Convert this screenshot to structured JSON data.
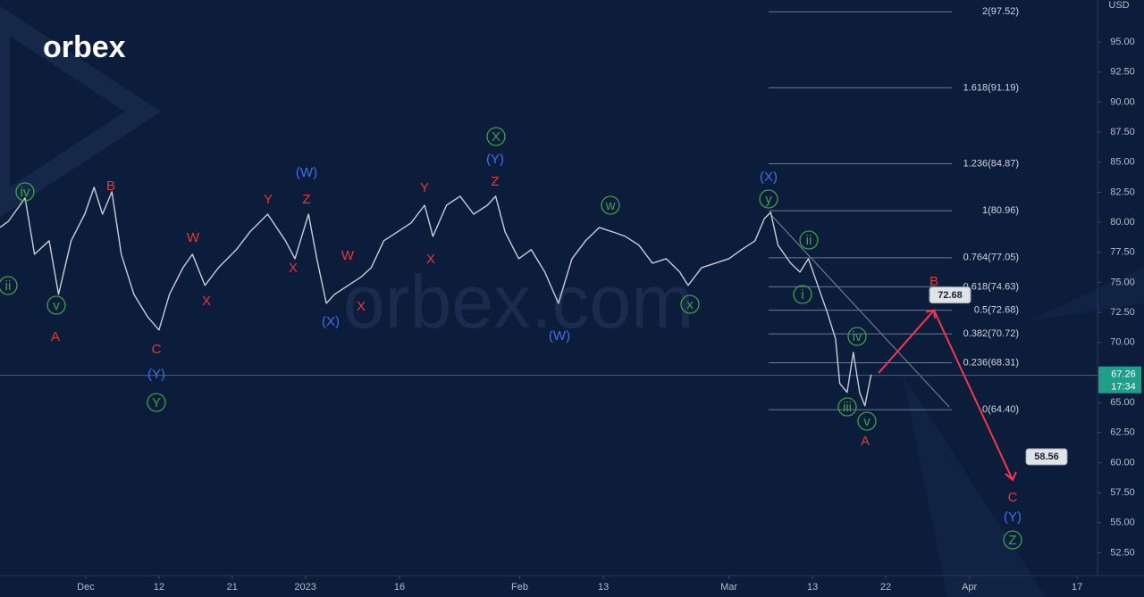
{
  "logo": "orbex",
  "watermark": "orbex.com",
  "chart_data": {
    "type": "line",
    "currency": "USD",
    "color": "#c9cdd6",
    "x": [
      -8.2,
      -7.4,
      -5.8,
      -4.9,
      -3.5,
      -2.6,
      -1.4,
      -0.1,
      0.8,
      1.6,
      2.5,
      3.4,
      4.6,
      5.9,
      7.0,
      8.0,
      9.3,
      10.2,
      11.4,
      12.7,
      14.4,
      15.7,
      17.4,
      19.1,
      20.0,
      21.3,
      22.1,
      23.0,
      23.8,
      25.1,
      26.4,
      27.3,
      28.5,
      29.8,
      31.1,
      32.4,
      33.2,
      34.5,
      35.8,
      37.1,
      38.4,
      39.2,
      40.1,
      41.4,
      42.6,
      43.9,
      45.2,
      46.5,
      47.8,
      49.1,
      50.4,
      51.6,
      52.9,
      54.2,
      55.5,
      56.8,
      57.6,
      58.9,
      60.2,
      61.5,
      62.7,
      64.0,
      64.9,
      65.5,
      66.2,
      67.4,
      68.3,
      69.1,
      70.0,
      70.9,
      71.7,
      72.1,
      72.8,
      73.4,
      74.0,
      74.5,
      75.1
    ],
    "values": [
      79.57,
      80.09,
      82.02,
      77.34,
      78.46,
      74.01,
      78.46,
      80.68,
      82.91,
      80.68,
      82.54,
      77.34,
      74.01,
      72.15,
      71.04,
      74.01,
      76.23,
      77.34,
      74.75,
      76.23,
      77.72,
      79.2,
      80.68,
      78.46,
      76.97,
      80.68,
      76.97,
      73.26,
      74.01,
      74.75,
      75.49,
      76.23,
      78.46,
      79.2,
      79.94,
      81.42,
      78.83,
      81.42,
      82.17,
      80.68,
      81.42,
      82.17,
      79.2,
      76.97,
      77.72,
      75.86,
      73.26,
      76.97,
      78.46,
      79.57,
      79.2,
      78.83,
      78.09,
      76.6,
      76.97,
      75.86,
      74.75,
      76.23,
      76.6,
      76.97,
      77.72,
      78.46,
      80.31,
      80.83,
      78.09,
      76.6,
      75.86,
      76.97,
      74.75,
      72.52,
      70.3,
      66.59,
      65.85,
      69.18,
      65.85,
      64.73,
      67.33
    ],
    "xlim": [
      -8.2,
      96.75
    ],
    "ylim": [
      50.6,
      98.5
    ],
    "xticks": [
      {
        "value": 0,
        "label": "Dec"
      },
      {
        "value": 7,
        "label": "12"
      },
      {
        "value": 14,
        "label": "21"
      },
      {
        "value": 21,
        "label": "2023"
      },
      {
        "value": 30,
        "label": "16"
      },
      {
        "value": 41.5,
        "label": "Feb"
      },
      {
        "value": 49.5,
        "label": "13"
      },
      {
        "value": 61.5,
        "label": "Mar"
      },
      {
        "value": 69.5,
        "label": "13"
      },
      {
        "value": 76.5,
        "label": "22"
      },
      {
        "value": 84.5,
        "label": "Apr"
      },
      {
        "value": 94.8,
        "label": "17"
      }
    ],
    "yticks": [
      {
        "value": 52.5,
        "label": "52.50"
      },
      {
        "value": 55,
        "label": "55.00"
      },
      {
        "value": 57.5,
        "label": "57.50"
      },
      {
        "value": 60,
        "label": "60.00"
      },
      {
        "value": 62.5,
        "label": "62.50"
      },
      {
        "value": 65,
        "label": "65.00"
      },
      {
        "value": 67.5,
        "label": "67.50"
      },
      {
        "value": 70,
        "label": "70.00"
      },
      {
        "value": 72.5,
        "label": "72.50"
      },
      {
        "value": 75,
        "label": "75.00"
      },
      {
        "value": 77.5,
        "label": "77.50"
      },
      {
        "value": 80,
        "label": "80.00"
      },
      {
        "value": 82.5,
        "label": "82.50"
      },
      {
        "value": 85,
        "label": "85.00"
      },
      {
        "value": 87.5,
        "label": "87.50"
      },
      {
        "value": 90,
        "label": "90.00"
      },
      {
        "value": 92.5,
        "label": "92.50"
      },
      {
        "value": 95,
        "label": "95.00"
      }
    ],
    "grid": false,
    "last_price": 67.26,
    "countdown": "17:34",
    "fib_levels": [
      {
        "value": 97.52,
        "label": "2(97.52)"
      },
      {
        "value": 91.19,
        "label": "1.618(91.19)"
      },
      {
        "value": 84.87,
        "label": "1.236(84.87)"
      },
      {
        "value": 80.96,
        "label": "1(80.96)"
      },
      {
        "value": 77.05,
        "label": "0.764(77.05)"
      },
      {
        "value": 74.63,
        "label": "0.618(74.63)"
      },
      {
        "value": 72.68,
        "label": "0.5(72.68)"
      },
      {
        "value": 70.72,
        "label": "0.382(70.72)"
      },
      {
        "value": 68.31,
        "label": "0.236(68.31)"
      },
      {
        "value": 64.4,
        "label": "0(64.40)"
      }
    ],
    "targets": [
      72.68,
      58.56
    ],
    "wave_labels": {
      "green": [
        "ii",
        "iv",
        "v",
        "Y",
        "X",
        "w",
        "x",
        "y",
        "ii",
        "i",
        "iv",
        "iii",
        "v",
        "Z"
      ],
      "red": [
        "A",
        "B",
        "C",
        "W",
        "X",
        "Y",
        "Z",
        "X",
        "W",
        "X",
        "Y",
        "X",
        "Z",
        "B",
        "A",
        "C"
      ],
      "blue": [
        "(W)",
        "(Y)",
        "(X)",
        "(Y)",
        "(W)",
        "(X)",
        "(Y)"
      ]
    }
  }
}
